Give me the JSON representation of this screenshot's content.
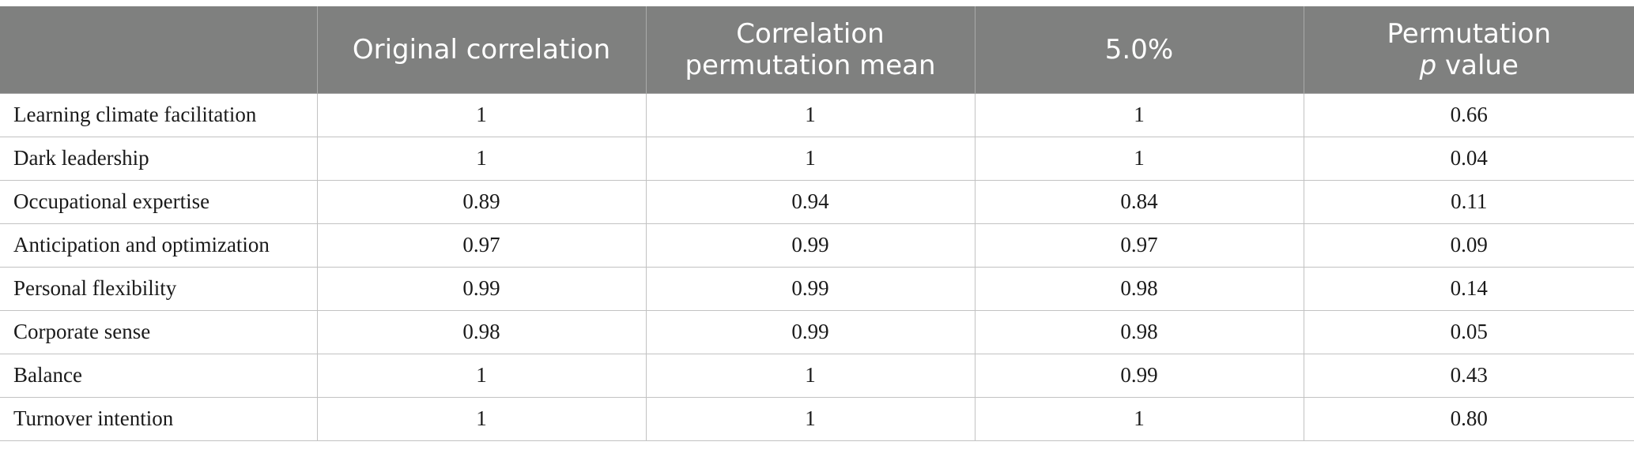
{
  "table": {
    "headers": [
      {
        "lines": [
          ""
        ]
      },
      {
        "lines": [
          "Original correlation"
        ]
      },
      {
        "lines": [
          "Correlation",
          "permutation mean"
        ]
      },
      {
        "lines": [
          "5.0%"
        ]
      },
      {
        "lines": [
          "Permutation"
        ],
        "italic_prefix": "p",
        "rest": " value"
      }
    ],
    "rows": [
      {
        "label": "Learning climate facilitation",
        "original": "1",
        "perm_mean": "1",
        "pct5": "1",
        "p": "0.66"
      },
      {
        "label": "Dark leadership",
        "original": "1",
        "perm_mean": "1",
        "pct5": "1",
        "p": "0.04"
      },
      {
        "label": "Occupational expertise",
        "original": "0.89",
        "perm_mean": "0.94",
        "pct5": "0.84",
        "p": "0.11"
      },
      {
        "label": "Anticipation and optimization",
        "original": "0.97",
        "perm_mean": "0.99",
        "pct5": "0.97",
        "p": "0.09"
      },
      {
        "label": "Personal flexibility",
        "original": "0.99",
        "perm_mean": "0.99",
        "pct5": "0.98",
        "p": "0.14"
      },
      {
        "label": "Corporate sense",
        "original": "0.98",
        "perm_mean": "0.99",
        "pct5": "0.98",
        "p": "0.05"
      },
      {
        "label": "Balance",
        "original": "1",
        "perm_mean": "1",
        "pct5": "0.99",
        "p": "0.43"
      },
      {
        "label": "Turnover intention",
        "original": "1",
        "perm_mean": "1",
        "pct5": "1",
        "p": "0.80"
      }
    ]
  },
  "colors": {
    "header_bg": "#7f807f",
    "header_text": "#ffffff",
    "grid": "#c2c2c2"
  }
}
